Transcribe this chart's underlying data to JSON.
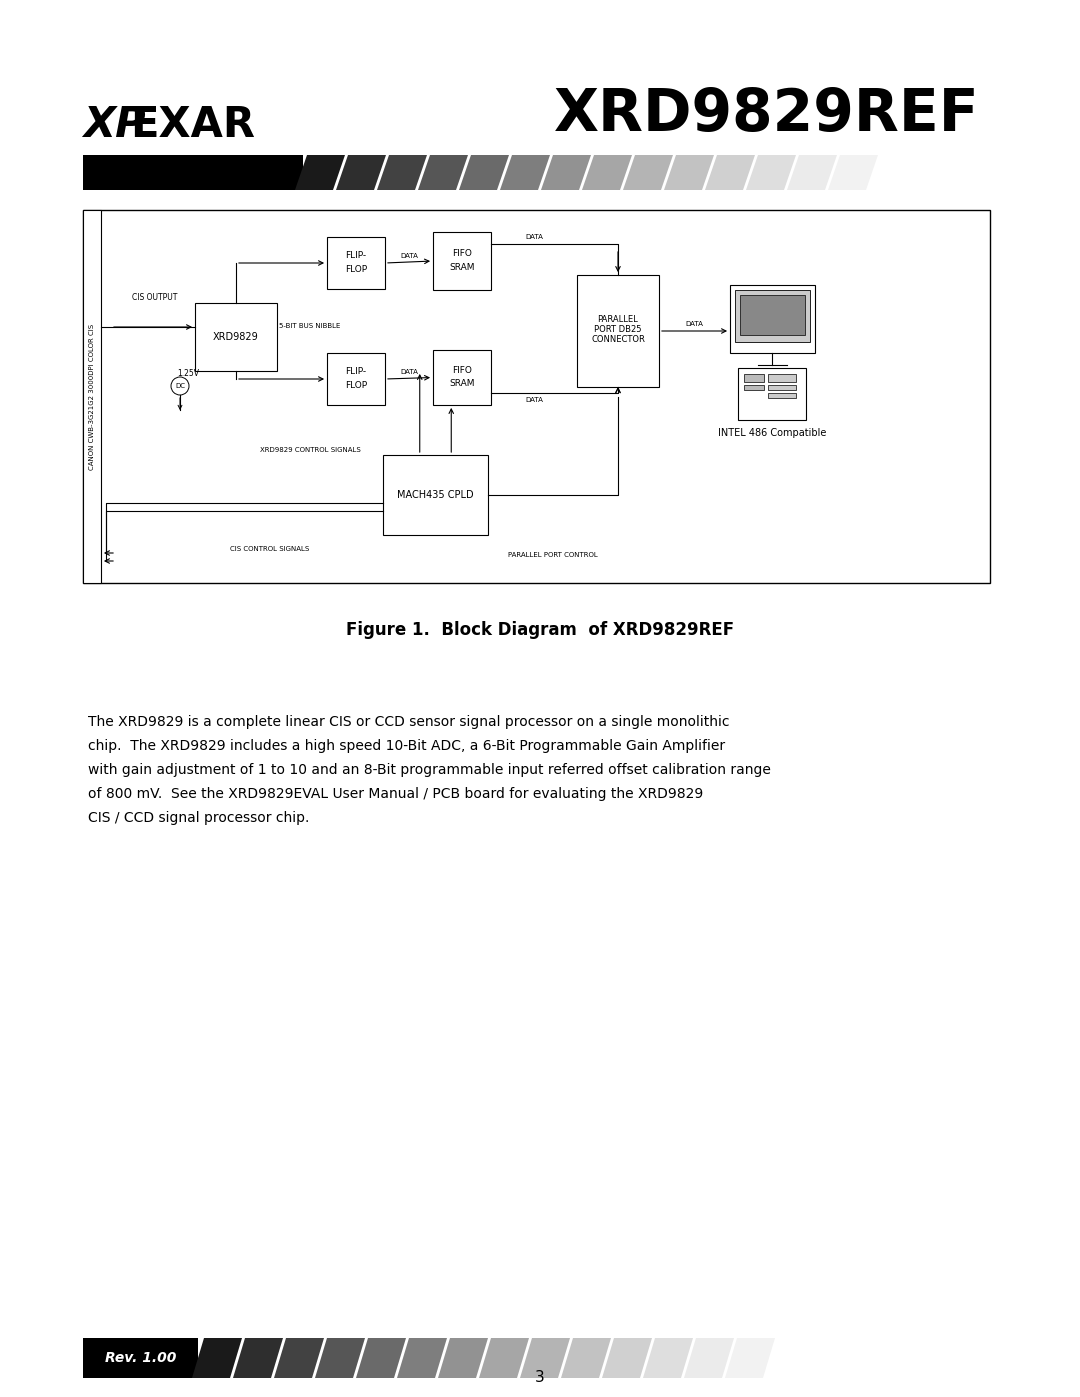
{
  "title": "XRD9829REF",
  "figure_caption": "Figure 1.  Block Diagram  of XRD9829REF",
  "page_number": "3",
  "rev": "Rev. 1.00",
  "body_lines": [
    "The XRD9829 is a complete linear CIS or CCD sensor signal processor on a single monolithic",
    "chip.  The XRD9829 includes a high speed 10-Bit ADC, a 6-Bit Programmable Gain Amplifier",
    "with gain adjustment of 1 to 10 and an 8-Bit programmable input referred offset calibration range",
    "of 800 mV.  See the XRD9829EVAL User Manual / PCB board for evaluating the XRD9829",
    "CIS / CCD signal processor chip."
  ],
  "bg_color": "#ffffff",
  "stripe_colors_dark_to_light": [
    "#1a1a1a",
    "#2e2e2e",
    "#424242",
    "#565656",
    "#6a6a6a",
    "#7e7e7e",
    "#929292",
    "#a6a6a6",
    "#b4b4b4",
    "#c2c2c2",
    "#d0d0d0",
    "#dedede",
    "#ebebeb",
    "#f2f2f2"
  ]
}
